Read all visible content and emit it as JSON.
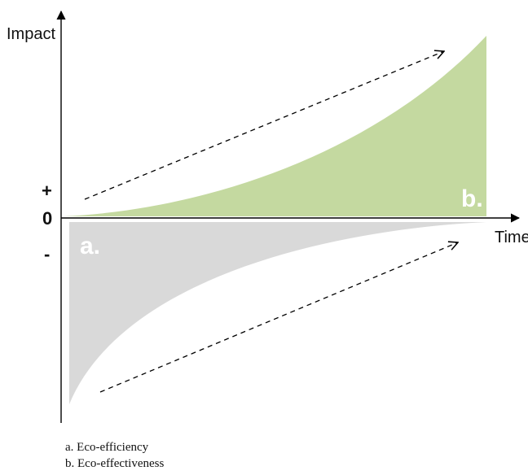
{
  "axes": {
    "y_label": "Impact",
    "x_label": "Time",
    "plus_sign": "+",
    "zero_label": "0",
    "minus_sign": "-"
  },
  "regions": {
    "a": {
      "letter": "a.",
      "color": "#d9d9d9"
    },
    "b": {
      "letter": "b.",
      "color": "#c4d9a0"
    }
  },
  "legend": {
    "items": [
      "a. Eco-efficiency",
      "b. Eco-effectiveness"
    ]
  }
}
